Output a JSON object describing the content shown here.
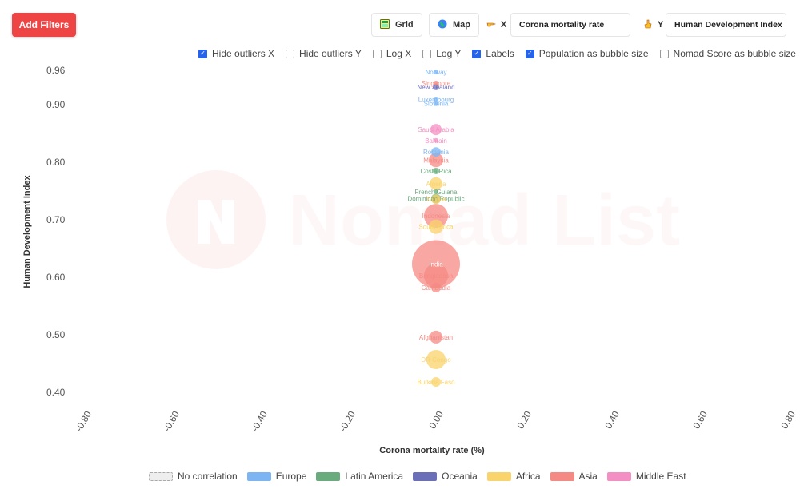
{
  "toolbar": {
    "add_filters": "Add Filters",
    "grid_label": "Grid",
    "map_label": "Map",
    "x_prefix": "X",
    "x_value": "Corona mortality rate",
    "y_prefix": "Y",
    "y_value": "Human Development Index"
  },
  "options": [
    {
      "label": "Hide outliers X",
      "checked": true
    },
    {
      "label": "Hide outliers Y",
      "checked": false
    },
    {
      "label": "Log X",
      "checked": false
    },
    {
      "label": "Log Y",
      "checked": false
    },
    {
      "label": "Labels",
      "checked": true
    },
    {
      "label": "Population as bubble size",
      "checked": true
    },
    {
      "label": "Nomad Score as bubble size",
      "checked": false
    }
  ],
  "watermark": "Nomad List",
  "colors": {
    "accent": "#ef4444",
    "checkbox": "#2563eb",
    "europe": "#7cb5f2",
    "latin_america": "#6aab7d",
    "oceania": "#6b6fb8",
    "africa": "#f9d36b",
    "asia": "#f58a84",
    "middle_east": "#f48fc3"
  },
  "legend": [
    {
      "label": "No correlation",
      "key": "none"
    },
    {
      "label": "Europe",
      "key": "europe"
    },
    {
      "label": "Latin America",
      "key": "latin_america"
    },
    {
      "label": "Oceania",
      "key": "oceania"
    },
    {
      "label": "Africa",
      "key": "africa"
    },
    {
      "label": "Asia",
      "key": "asia"
    },
    {
      "label": "Middle East",
      "key": "middle_east"
    }
  ],
  "chart_data": {
    "type": "scatter",
    "xlabel": "Corona mortality rate (%)",
    "ylabel": "Human Development Index",
    "x_ticks": [
      "-0.80",
      "-0.60",
      "-0.40",
      "-0.20",
      "0.00",
      "0.20",
      "0.40",
      "0.60",
      "0.80"
    ],
    "y_ticks": [
      "0.40",
      "0.50",
      "0.60",
      "0.70",
      "0.80",
      "0.90",
      "0.96"
    ],
    "xlim": [
      -0.8,
      0.8
    ],
    "ylim": [
      0.4,
      0.96
    ],
    "points": [
      {
        "label": "Norway",
        "x": 0,
        "y": 0.957,
        "region": "europe",
        "size": 3
      },
      {
        "label": "Singapore",
        "x": 0,
        "y": 0.938,
        "region": "asia",
        "size": 3
      },
      {
        "label": "New Zealand",
        "x": 0,
        "y": 0.931,
        "region": "oceania",
        "size": 4
      },
      {
        "label": "Luxembourg",
        "x": 0,
        "y": 0.909,
        "region": "europe",
        "size": 3
      },
      {
        "label": "Slovenia",
        "x": 0,
        "y": 0.902,
        "region": "europe",
        "size": 3
      },
      {
        "label": "Saudi Arabia",
        "x": 0,
        "y": 0.857,
        "region": "middle_east",
        "size": 7
      },
      {
        "label": "Bahrain",
        "x": 0,
        "y": 0.838,
        "region": "middle_east",
        "size": 3
      },
      {
        "label": "Romania",
        "x": 0,
        "y": 0.818,
        "region": "europe",
        "size": 6
      },
      {
        "label": "Malaysia",
        "x": 0,
        "y": 0.804,
        "region": "asia",
        "size": 9
      },
      {
        "label": "Costa Rica",
        "x": 0,
        "y": 0.785,
        "region": "latin_america",
        "size": 4
      },
      {
        "label": "Algeria",
        "x": 0,
        "y": 0.763,
        "region": "africa",
        "size": 8
      },
      {
        "label": "French Guiana",
        "x": 0,
        "y": 0.749,
        "region": "latin_america",
        "size": 3
      },
      {
        "label": "Dominican Republic",
        "x": 0,
        "y": 0.737,
        "region": "latin_america",
        "size": 6
      },
      {
        "label": "Tunisia",
        "x": 0,
        "y": 0.736,
        "region": "africa",
        "size": 6
      },
      {
        "label": "Indonesia",
        "x": 0,
        "y": 0.707,
        "region": "asia",
        "size": 15
      },
      {
        "label": "South Africa",
        "x": 0,
        "y": 0.688,
        "region": "africa",
        "size": 9
      },
      {
        "label": "India",
        "x": 0,
        "y": 0.623,
        "region": "asia",
        "size": 30
      },
      {
        "label": "Bangladesh",
        "x": 0,
        "y": 0.603,
        "region": "asia",
        "size": 15
      },
      {
        "label": "Cambodia",
        "x": 0,
        "y": 0.582,
        "region": "asia",
        "size": 6
      },
      {
        "label": "Afghanistan",
        "x": 0,
        "y": 0.496,
        "region": "asia",
        "size": 8
      },
      {
        "label": "DR Congo",
        "x": 0,
        "y": 0.457,
        "region": "africa",
        "size": 12
      },
      {
        "label": "Burkina Faso",
        "x": 0,
        "y": 0.418,
        "region": "africa",
        "size": 6
      }
    ]
  }
}
